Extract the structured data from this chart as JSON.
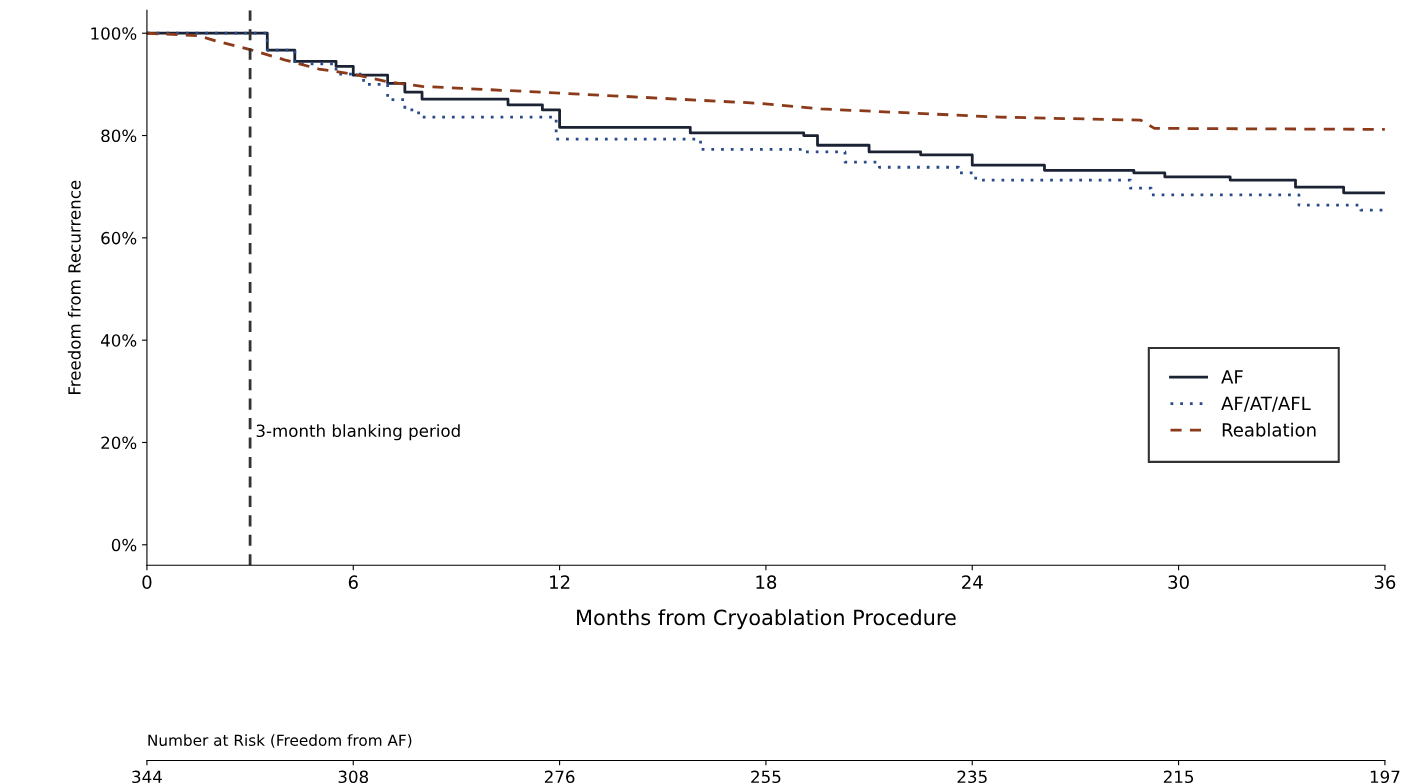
{
  "chart_data": {
    "type": "step",
    "xlabel": "Months from Cryoablation Procedure",
    "ylabel": "Freedom from Recurrence",
    "xlim": [
      0,
      36
    ],
    "xticks": [
      0,
      6,
      12,
      18,
      24,
      30,
      36
    ],
    "ylim": [
      -4,
      104.5
    ],
    "yticks": [
      {
        "value": 0,
        "label": "0%"
      },
      {
        "value": 20,
        "label": "20%"
      },
      {
        "value": 40,
        "label": "40%"
      },
      {
        "value": 60,
        "label": "60%"
      },
      {
        "value": 80,
        "label": "80%"
      },
      {
        "value": 100,
        "label": "100%"
      }
    ],
    "grid": false,
    "legend": "lower right",
    "series": [
      {
        "name": "AF",
        "color": "#1a2233",
        "line_style": "solid",
        "x": [
          0,
          3,
          3.5,
          4.3,
          5.5,
          6,
          7,
          7.5,
          8,
          10.5,
          11.5,
          12,
          15.8,
          19.1,
          19.5,
          21,
          22.5,
          24,
          26.1,
          28.7,
          29.6,
          31.5,
          33.4,
          34.8,
          36
        ],
        "values": [
          100,
          100,
          96.7,
          94.5,
          93.5,
          91.8,
          90.2,
          88.5,
          87.1,
          86,
          85,
          81.6,
          80.5,
          80,
          78.1,
          76.8,
          76.2,
          74.2,
          73.2,
          72.7,
          71.9,
          71.3,
          69.9,
          68.8,
          68.8
        ]
      },
      {
        "name": "AF/AT/AFL",
        "color": "#2a4a8a",
        "line_style": "dotted",
        "x": [
          0,
          3,
          3.5,
          4.3,
          5.5,
          6.3,
          7,
          7.5,
          7.9,
          11.9,
          16.1,
          19,
          20.3,
          21.3,
          23.6,
          24.1,
          28.6,
          29.2,
          33.5,
          35.3,
          36
        ],
        "values": [
          100,
          100,
          96.7,
          94,
          92,
          90,
          87,
          85,
          83.6,
          79.3,
          77.3,
          76.8,
          74.8,
          73.8,
          72.7,
          71.3,
          69.7,
          68.4,
          66.4,
          65.4,
          65.4
        ]
      },
      {
        "name": "Reablation",
        "type": "line",
        "color": "#8b3a1a",
        "line_style": "dashed",
        "x": [
          0,
          1.5,
          2,
          3,
          4,
          5,
          6,
          7,
          8,
          12,
          17.8,
          19.6,
          24.8,
          28.9,
          29.3,
          36
        ],
        "values": [
          100,
          99.5,
          98.5,
          96.8,
          94.8,
          93,
          92,
          90.5,
          89.6,
          88.3,
          86.3,
          85.2,
          83.6,
          83,
          81.4,
          81.2
        ]
      }
    ],
    "ref_lines": [
      {
        "axis": "x",
        "value": 3,
        "label": "3-month blanking period",
        "color": "#333333",
        "line_style": "dashed"
      }
    ],
    "annotations": [
      "Number at Risk (Freedom from AF)",
      "344",
      "308",
      "276",
      "255",
      "235",
      "215",
      "197"
    ]
  }
}
